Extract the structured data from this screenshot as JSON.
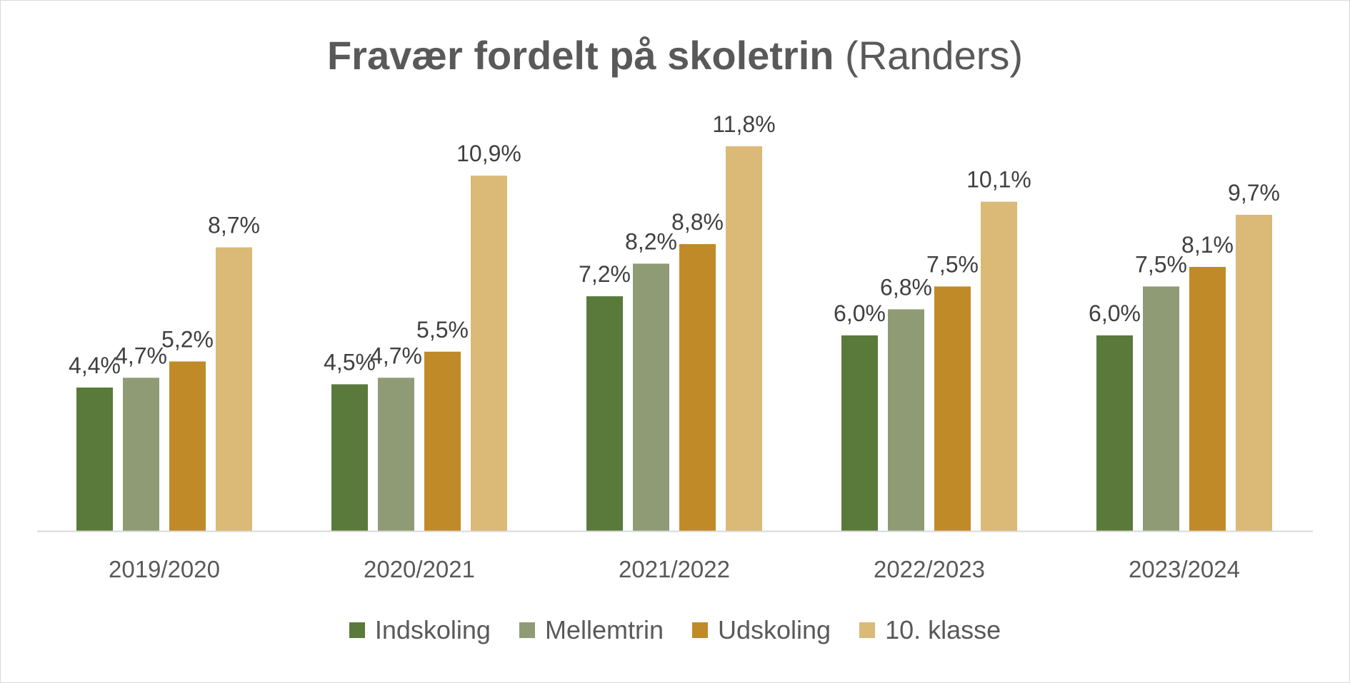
{
  "chart_data": {
    "type": "bar",
    "title": "Fravær fordelt på skoletrin",
    "subtitle": "(Randers)",
    "categories": [
      "2019/2020",
      "2020/2021",
      "2021/2022",
      "2022/2023",
      "2023/2024"
    ],
    "series": [
      {
        "name": "Indskoling",
        "color": "#5a7a3c",
        "values": [
          4.4,
          4.5,
          7.2,
          6.0,
          6.0
        ],
        "labels": [
          "4,4%",
          "4,5%",
          "7,2%",
          "6,0%",
          "6,0%"
        ]
      },
      {
        "name": "Mellemtrin",
        "color": "#8f9b74",
        "values": [
          4.7,
          4.7,
          8.2,
          6.8,
          7.5
        ],
        "labels": [
          "4,7%",
          "4,7%",
          "8,2%",
          "6,8%",
          "7,5%"
        ]
      },
      {
        "name": "Udskoling",
        "color": "#c08a29",
        "values": [
          5.2,
          5.5,
          8.8,
          7.5,
          8.1
        ],
        "labels": [
          "5,2%",
          "5,5%",
          "8,8%",
          "7,5%",
          "8,1%"
        ]
      },
      {
        "name": "10. klasse",
        "color": "#dbb977",
        "values": [
          8.7,
          10.9,
          11.8,
          10.1,
          9.7
        ],
        "labels": [
          "8,7%",
          "10,9%",
          "11,8%",
          "10,1%",
          "9,7%"
        ]
      }
    ],
    "ylim": [
      0,
      13
    ],
    "xlabel": "",
    "ylabel": "",
    "grid": false,
    "legend_position": "bottom",
    "axis_color": "#d9d9d9"
  }
}
